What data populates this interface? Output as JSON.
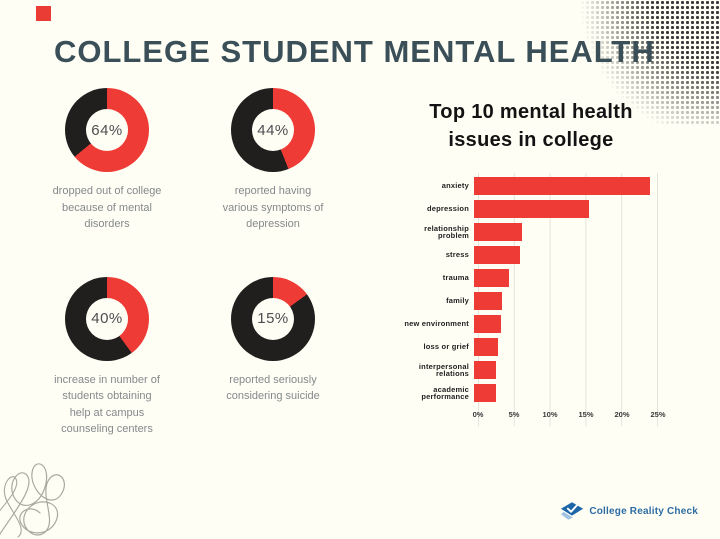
{
  "page": {
    "title": "COLLEGE STUDENT MENTAL HEALTH"
  },
  "colors": {
    "background": "#FFFEF5",
    "accent_red": "#EF3B36",
    "donut_dark": "#211E1E",
    "title_slate": "#3A4F58",
    "caption_gray": "#85898C",
    "logo_blue": "#2D6CA2"
  },
  "stats": [
    {
      "value": "64%",
      "percent": 64,
      "caption": "dropped out of college\nbecause of mental\ndisorders"
    },
    {
      "value": "44%",
      "percent": 44,
      "caption": "reported having\nvarious symptoms of\ndepression"
    },
    {
      "value": "40%",
      "percent": 40,
      "caption": "increase in number of\nstudents obtaining\nhelp at campus\ncounseling centers"
    },
    {
      "value": "15%",
      "percent": 15,
      "caption": "reported seriously\nconsidering suicide"
    }
  ],
  "chart_data": {
    "type": "bar",
    "orientation": "horizontal",
    "title": "Top 10 mental health\nissues in college",
    "categories": [
      "anxiety",
      "depression",
      "relationship problem",
      "stress",
      "trauma",
      "family",
      "new environment",
      "loss or grief",
      "interpersonal relations",
      "academic performance"
    ],
    "values": [
      24.4,
      16.0,
      6.6,
      6.4,
      4.9,
      3.9,
      3.7,
      3.3,
      3.1,
      3.0
    ],
    "unit": "%",
    "xlabel": "",
    "ylabel": "",
    "xlim": [
      0,
      25
    ],
    "xtick_labels": [
      "0%",
      "5%",
      "10%",
      "15%",
      "20%",
      "25%"
    ],
    "grid": true,
    "legend": false,
    "bar_color": "#EF3B36"
  },
  "logo": {
    "text": "College Reality Check"
  }
}
